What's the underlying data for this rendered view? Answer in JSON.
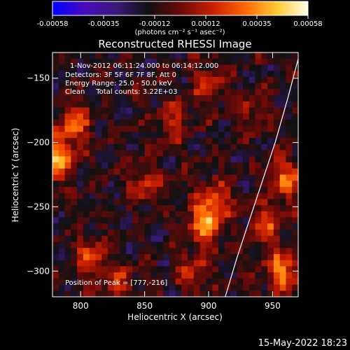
{
  "colorbar": {
    "tick_labels": [
      "-0.00058",
      "-0.00035",
      "-0.00012",
      "0.00012",
      "0.00035",
      "0.00058"
    ],
    "unit_label": "(photons cm⁻² s⁻¹ asec⁻²)",
    "colormap": [
      "#0000ff",
      "#4a0abf",
      "#3a1a7a",
      "#101010",
      "#6a0a0a",
      "#c81e00",
      "#ff6400",
      "#ffc832",
      "#ffffe6"
    ]
  },
  "chart_data": {
    "type": "heatmap",
    "title": "Reconstructed RHESSI Image",
    "xlabel": "Heliocentric X (arcsec)",
    "ylabel": "Heliocentric Y (arcsec)",
    "xlim": [
      778,
      970
    ],
    "ylim": [
      -320,
      -130
    ],
    "x_ticks": [
      800,
      850,
      900,
      950
    ],
    "y_ticks": [
      -150,
      -200,
      -250,
      -300
    ],
    "x_tick_labels": [
      "800",
      "850",
      "900",
      "950"
    ],
    "y_tick_labels": [
      "−150",
      "−200",
      "−250",
      "−300"
    ],
    "limb_curve": [
      [
        913,
        -320
      ],
      [
        922,
        -290
      ],
      [
        932,
        -260
      ],
      [
        942,
        -230
      ],
      [
        952,
        -200
      ],
      [
        962,
        -165
      ],
      [
        970,
        -135
      ]
    ],
    "hot_spots": [
      {
        "x": 782,
        "y": -212,
        "intensity": 1.0
      },
      {
        "x": 795,
        "y": -185,
        "intensity": 0.75
      },
      {
        "x": 897,
        "y": -262,
        "intensity": 0.9
      },
      {
        "x": 905,
        "y": -245,
        "intensity": 0.6
      },
      {
        "x": 958,
        "y": -300,
        "intensity": 0.85
      },
      {
        "x": 960,
        "y": -228,
        "intensity": 0.7
      },
      {
        "x": 945,
        "y": -265,
        "intensity": 0.6
      },
      {
        "x": 850,
        "y": -232,
        "intensity": 0.5
      },
      {
        "x": 872,
        "y": -185,
        "intensity": 0.45
      },
      {
        "x": 808,
        "y": -290,
        "intensity": 0.55
      },
      {
        "x": 830,
        "y": -310,
        "intensity": 0.45
      },
      {
        "x": 888,
        "y": -300,
        "intensity": 0.5
      },
      {
        "x": 900,
        "y": -155,
        "intensity": 0.5
      },
      {
        "x": 935,
        "y": -175,
        "intensity": 0.35
      }
    ],
    "info_lines": [
      "1-Nov-2012 06:11:24.000 to 06:14:12.000",
      "Detectors: 3F 5F 6F 7F 8F, Att 0",
      "Energy Range: 25.0 - 50.0 keV",
      "Clean     Total counts: 3.22E+03"
    ],
    "peak_label": "Position of Peak = [777,-216]"
  },
  "footer": {
    "date": "15-May-2022 18:23"
  }
}
